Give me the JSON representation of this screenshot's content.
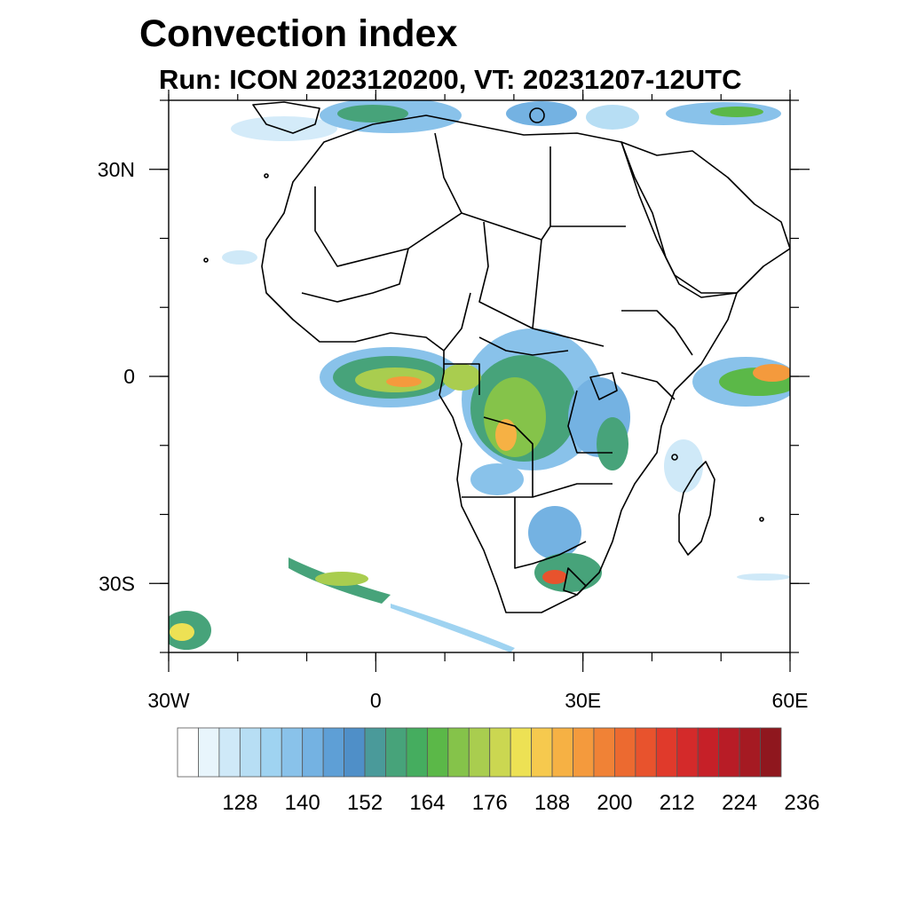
{
  "title": "Convection index",
  "subtitle": "Run: ICON 2023120200,  VT: 20231207-12UTC",
  "map": {
    "lon_range": [
      -30,
      60
    ],
    "lat_range": [
      -40,
      40
    ],
    "x_ticks": [
      {
        "lon": -30,
        "label": "30W"
      },
      {
        "lon": 0,
        "label": "0"
      },
      {
        "lon": 30,
        "label": "30E"
      },
      {
        "lon": 60,
        "label": "60E"
      }
    ],
    "y_ticks": [
      {
        "lat": 30,
        "label": "30N"
      },
      {
        "lat": 0,
        "label": "0"
      },
      {
        "lat": -30,
        "label": "30S"
      }
    ]
  },
  "colorbar": {
    "colors": [
      "#ffffff",
      "#e8f5fc",
      "#cfe9f8",
      "#b7def4",
      "#9fd3f1",
      "#89c2ea",
      "#74b2e2",
      "#5e9fd6",
      "#4f8fc8",
      "#4a9a9a",
      "#47a37a",
      "#45ad5f",
      "#5bb848",
      "#85c34a",
      "#a9cd4f",
      "#cbd751",
      "#ede154",
      "#f6c94e",
      "#f6b144",
      "#f49a3d",
      "#f08236",
      "#ec6a30",
      "#e8532d",
      "#e03a2b",
      "#d42a2a",
      "#c62028",
      "#b81c26",
      "#a51a22",
      "#8f171e"
    ],
    "labels": [
      "128",
      "140",
      "152",
      "164",
      "176",
      "188",
      "200",
      "212",
      "224",
      "236"
    ]
  }
}
